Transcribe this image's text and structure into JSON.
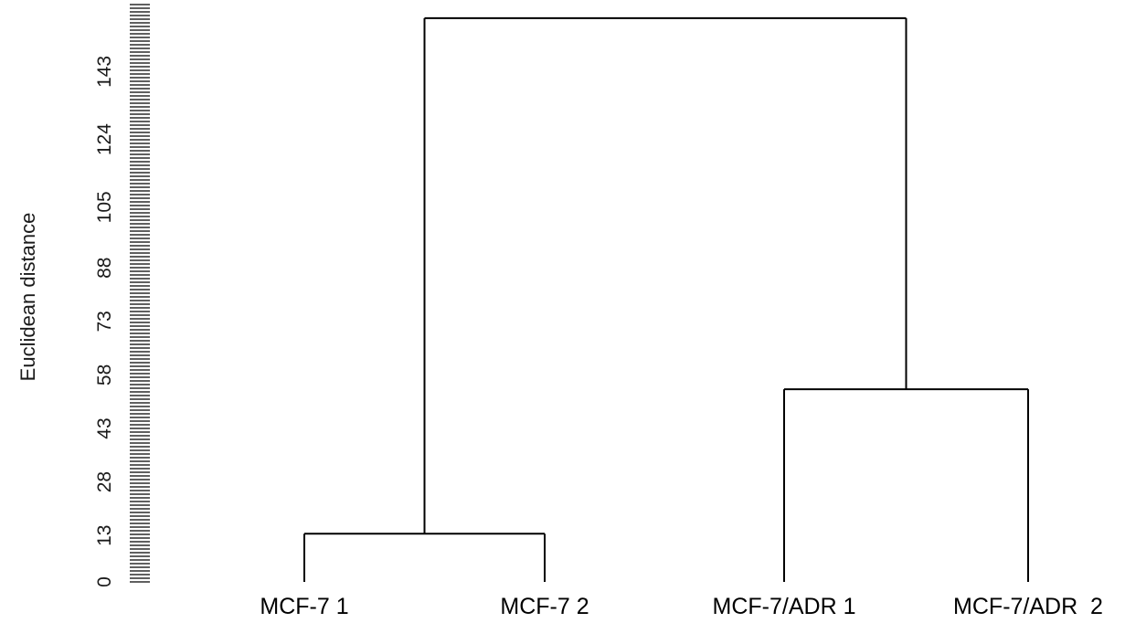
{
  "chart_data": {
    "type": "dendrogram",
    "ylabel": "Euclidean distance",
    "y_ticks": [
      0,
      13,
      28,
      43,
      58,
      73,
      88,
      105,
      124,
      143
    ],
    "ylim": [
      0,
      160
    ],
    "leaves": [
      "MCF-7 1",
      "MCF-7 2",
      "MCF-7/ADR 1",
      "MCF-7/ADR  2"
    ],
    "merges": [
      {
        "left": "MCF-7 1",
        "right": "MCF-7 2",
        "height": 13.5
      },
      {
        "left": "MCF-7/ADR 1",
        "right": "MCF-7/ADR  2",
        "height": 54
      },
      {
        "left": "cluster-1",
        "right": "cluster-2",
        "height": 158
      }
    ],
    "grid": false
  }
}
